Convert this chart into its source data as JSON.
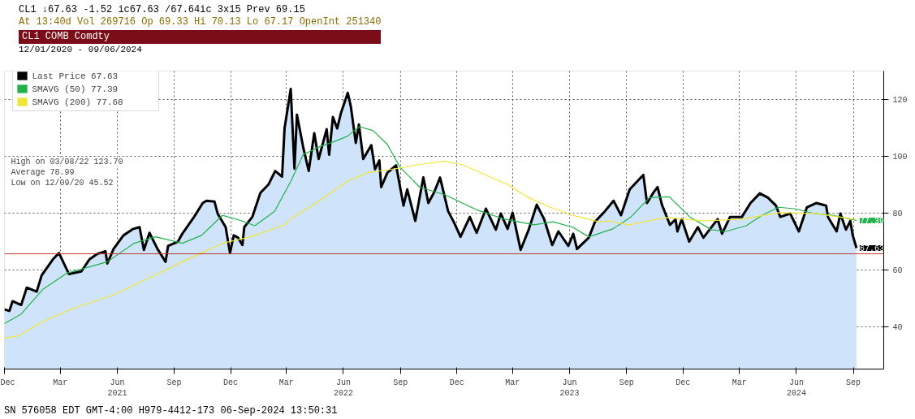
{
  "chart_data": {
    "type": "line",
    "annotations": [
      "CL1 ↓67.63   -1.52   ic67.63 /67.64ic   3x15   Prev 69.15",
      "At 13:40d Vol 269716   Op 69.33   Hi 70.13   Lo 67.17   OpenInt 251340",
      "CL1 COMB Comdty",
      "12/01/2020 - 09/06/2024",
      "High on 03/08/22 123.70",
      "Average 78.99",
      "Low on 12/09/20 45.52",
      "SN 576058 EDT  GMT-4:00 H979-4412-173 06-Sep-2024 13:50:31",
      {
        "text": "77.39",
        "x": "2024-09-06",
        "y": 77.39
      },
      {
        "text": "67.63",
        "x": "2024-09-06",
        "y": 67.63
      }
    ],
    "xlim": [
      "2020-12-01",
      "2024-10-20"
    ],
    "xticks": [
      {
        "value": "2020-12-01",
        "label": "Dec"
      },
      {
        "value": "2021-03-01",
        "label": "Mar"
      },
      {
        "value": "2021-06-01",
        "label": "Jun\n2021"
      },
      {
        "value": "2021-09-01",
        "label": "Sep"
      },
      {
        "value": "2021-12-01",
        "label": "Dec"
      },
      {
        "value": "2022-03-01",
        "label": "Mar"
      },
      {
        "value": "2022-06-01",
        "label": "Jun\n2022"
      },
      {
        "value": "2022-09-01",
        "label": "Sep"
      },
      {
        "value": "2022-12-01",
        "label": "Dec"
      },
      {
        "value": "2023-03-01",
        "label": "Mar"
      },
      {
        "value": "2023-06-01",
        "label": "Jun\n2023"
      },
      {
        "value": "2023-09-01",
        "label": "Sep"
      },
      {
        "value": "2023-12-01",
        "label": "Dec"
      },
      {
        "value": "2024-03-01",
        "label": "Mar"
      },
      {
        "value": "2024-06-01",
        "label": "Jun\n2024"
      },
      {
        "value": "2024-09-01",
        "label": "Sep"
      }
    ],
    "ylim": [
      25,
      130
    ],
    "yticks": [
      40,
      60,
      80,
      100,
      120
    ],
    "grid": true,
    "legend": "top left",
    "ref_lines": [
      {
        "axis": "y",
        "value": 65.6,
        "color": "#c0392b"
      }
    ],
    "series": [
      {
        "name": "Last Price 67.63",
        "type": "area",
        "color": "#000000",
        "x": [
          "2020-12-01",
          "2020-12-09",
          "2020-12-14",
          "2020-12-28",
          "2021-01-06",
          "2021-01-22",
          "2021-01-30",
          "2021-02-17",
          "2021-02-27",
          "2021-03-15",
          "2021-04-04",
          "2021-04-17",
          "2021-04-30",
          "2021-05-13",
          "2021-05-16",
          "2021-05-26",
          "2021-06-11",
          "2021-06-27",
          "2021-07-07",
          "2021-07-14",
          "2021-07-23",
          "2021-08-05",
          "2021-08-18",
          "2021-08-22",
          "2021-09-07",
          "2021-09-14",
          "2021-10-03",
          "2021-10-17",
          "2021-10-23",
          "2021-11-05",
          "2021-11-10",
          "2021-11-23",
          "2021-11-30",
          "2021-12-06",
          "2021-12-13",
          "2021-12-20",
          "2021-12-23",
          "2022-01-05",
          "2022-01-18",
          "2022-01-31",
          "2022-02-11",
          "2022-02-22",
          "2022-02-26",
          "2022-03-08",
          "2022-03-14",
          "2022-03-18",
          "2022-03-28",
          "2022-04-06",
          "2022-04-15",
          "2022-04-22",
          "2022-05-05",
          "2022-05-09",
          "2022-05-15",
          "2022-05-22",
          "2022-05-28",
          "2022-06-08",
          "2022-06-13",
          "2022-06-21",
          "2022-06-26",
          "2022-07-03",
          "2022-07-16",
          "2022-07-22",
          "2022-07-29",
          "2022-08-01",
          "2022-08-11",
          "2022-08-25",
          "2022-09-06",
          "2022-09-12",
          "2022-09-25",
          "2022-10-08",
          "2022-10-16",
          "2022-10-25",
          "2022-11-04",
          "2022-11-17",
          "2022-11-26",
          "2022-12-07",
          "2022-12-22",
          "2023-01-02",
          "2023-01-17",
          "2023-02-02",
          "2023-02-10",
          "2023-02-21",
          "2023-03-01",
          "2023-03-14",
          "2023-03-27",
          "2023-04-09",
          "2023-04-21",
          "2023-05-04",
          "2023-05-14",
          "2023-05-30",
          "2023-06-07",
          "2023-06-13",
          "2023-07-02",
          "2023-07-12",
          "2023-07-28",
          "2023-08-11",
          "2023-08-23",
          "2023-09-06",
          "2023-09-18",
          "2023-09-28",
          "2023-10-04",
          "2023-10-14",
          "2023-10-21",
          "2023-10-28",
          "2023-11-10",
          "2023-11-19",
          "2023-11-22",
          "2023-11-29",
          "2023-12-11",
          "2023-12-25",
          "2024-01-03",
          "2024-01-26",
          "2024-02-02",
          "2024-02-15",
          "2024-03-05",
          "2024-03-19",
          "2024-04-03",
          "2024-04-16",
          "2024-04-29",
          "2024-05-06",
          "2024-05-22",
          "2024-06-05",
          "2024-06-18",
          "2024-07-03",
          "2024-07-19",
          "2024-07-22",
          "2024-08-05",
          "2024-08-11",
          "2024-08-20",
          "2024-08-27",
          "2024-08-31",
          "2024-09-06"
        ],
        "values": [
          46.0,
          45.5,
          48.9,
          47.6,
          53.7,
          52.3,
          58.0,
          63.6,
          65.9,
          58.5,
          59.4,
          63.6,
          65.6,
          66.5,
          62.2,
          67.3,
          72.1,
          74.4,
          75.0,
          67.0,
          73.0,
          67.3,
          62.8,
          68.4,
          69.9,
          72.7,
          78.6,
          83.5,
          84.3,
          84.0,
          79.8,
          75.0,
          65.9,
          72.1,
          71.3,
          68.7,
          75.0,
          78.6,
          87.1,
          90.0,
          94.8,
          92.8,
          109.8,
          123.7,
          95.6,
          114.6,
          103.3,
          94.8,
          108.1,
          99.0,
          109.5,
          100.5,
          113.8,
          109.8,
          115.2,
          122.3,
          117.5,
          104.7,
          111.2,
          99.0,
          103.9,
          95.4,
          98.5,
          89.1,
          94.2,
          96.8,
          82.6,
          88.3,
          77.2,
          92.5,
          83.5,
          87.1,
          92.5,
          80.6,
          76.9,
          71.6,
          78.6,
          73.0,
          81.5,
          74.1,
          79.8,
          74.4,
          80.1,
          67.0,
          74.1,
          82.9,
          77.8,
          68.7,
          73.5,
          68.4,
          72.7,
          67.3,
          71.3,
          76.9,
          80.6,
          84.3,
          79.2,
          88.3,
          91.1,
          93.4,
          83.5,
          87.1,
          89.1,
          82.9,
          75.8,
          77.8,
          73.5,
          77.8,
          69.9,
          75.0,
          71.3,
          77.8,
          72.7,
          78.6,
          78.6,
          83.5,
          86.9,
          85.4,
          82.6,
          78.6,
          79.8,
          73.5,
          82.0,
          83.5,
          82.6,
          78.6,
          73.5,
          79.8,
          74.1,
          77.2,
          72.1,
          67.63
        ]
      },
      {
        "name": "SMAVG (50) 77.39",
        "color": "#22b04b",
        "x": [
          "2020-12-01",
          "2020-12-28",
          "2021-02-01",
          "2021-03-12",
          "2021-05-16",
          "2021-06-28",
          "2021-08-02",
          "2021-09-14",
          "2021-10-15",
          "2021-11-18",
          "2021-12-19",
          "2022-01-09",
          "2022-02-10",
          "2022-03-08",
          "2022-03-28",
          "2022-04-23",
          "2022-05-19",
          "2022-06-07",
          "2022-06-27",
          "2022-07-19",
          "2022-08-11",
          "2022-08-31",
          "2022-10-02",
          "2022-11-13",
          "2023-01-01",
          "2023-02-16",
          "2023-04-05",
          "2023-05-05",
          "2023-06-06",
          "2023-07-02",
          "2023-08-10",
          "2023-09-08",
          "2023-10-08",
          "2023-11-09",
          "2023-12-12",
          "2024-01-16",
          "2024-02-08",
          "2024-03-12",
          "2024-04-07",
          "2024-05-03",
          "2024-05-29",
          "2024-06-30",
          "2024-07-29",
          "2024-09-06"
        ],
        "values": [
          41.0,
          44.4,
          53.1,
          58.8,
          62.8,
          69.3,
          71.6,
          69.3,
          72.1,
          79.2,
          77.2,
          75.5,
          80.6,
          91.1,
          100.5,
          103.3,
          105.3,
          107.0,
          110.4,
          109.0,
          104.1,
          96.2,
          89.1,
          86.3,
          81.2,
          77.8,
          75.8,
          76.9,
          75.0,
          71.6,
          74.4,
          78.6,
          85.4,
          85.7,
          78.6,
          74.1,
          73.5,
          75.5,
          79.2,
          82.0,
          81.5,
          79.8,
          79.2,
          77.39
        ]
      },
      {
        "name": "SMAVG (200) 77.68",
        "color": "#f2e43a",
        "x": [
          "2020-12-01",
          "2020-12-24",
          "2021-02-01",
          "2021-03-25",
          "2021-05-29",
          "2021-07-11",
          "2021-09-14",
          "2021-11-18",
          "2022-01-02",
          "2022-02-26",
          "2022-03-11",
          "2022-03-24",
          "2022-04-23",
          "2022-06-07",
          "2022-07-10",
          "2022-08-24",
          "2022-10-02",
          "2022-11-10",
          "2022-12-09",
          "2023-01-17",
          "2023-02-21",
          "2023-03-27",
          "2023-05-01",
          "2023-06-06",
          "2023-07-18",
          "2023-08-04",
          "2023-09-05",
          "2023-11-03",
          "2024-01-03",
          "2024-03-05",
          "2024-05-03",
          "2024-07-03",
          "2024-09-06"
        ],
        "values": [
          35.9,
          36.7,
          41.8,
          46.6,
          51.4,
          55.9,
          62.8,
          69.3,
          71.6,
          75.8,
          78.4,
          80.1,
          84.3,
          91.1,
          94.2,
          95.6,
          97.1,
          98.2,
          97.1,
          93.4,
          90.0,
          85.4,
          82.0,
          79.2,
          76.9,
          77.2,
          75.8,
          78.4,
          77.2,
          77.8,
          80.1,
          79.8,
          77.68
        ]
      }
    ]
  }
}
